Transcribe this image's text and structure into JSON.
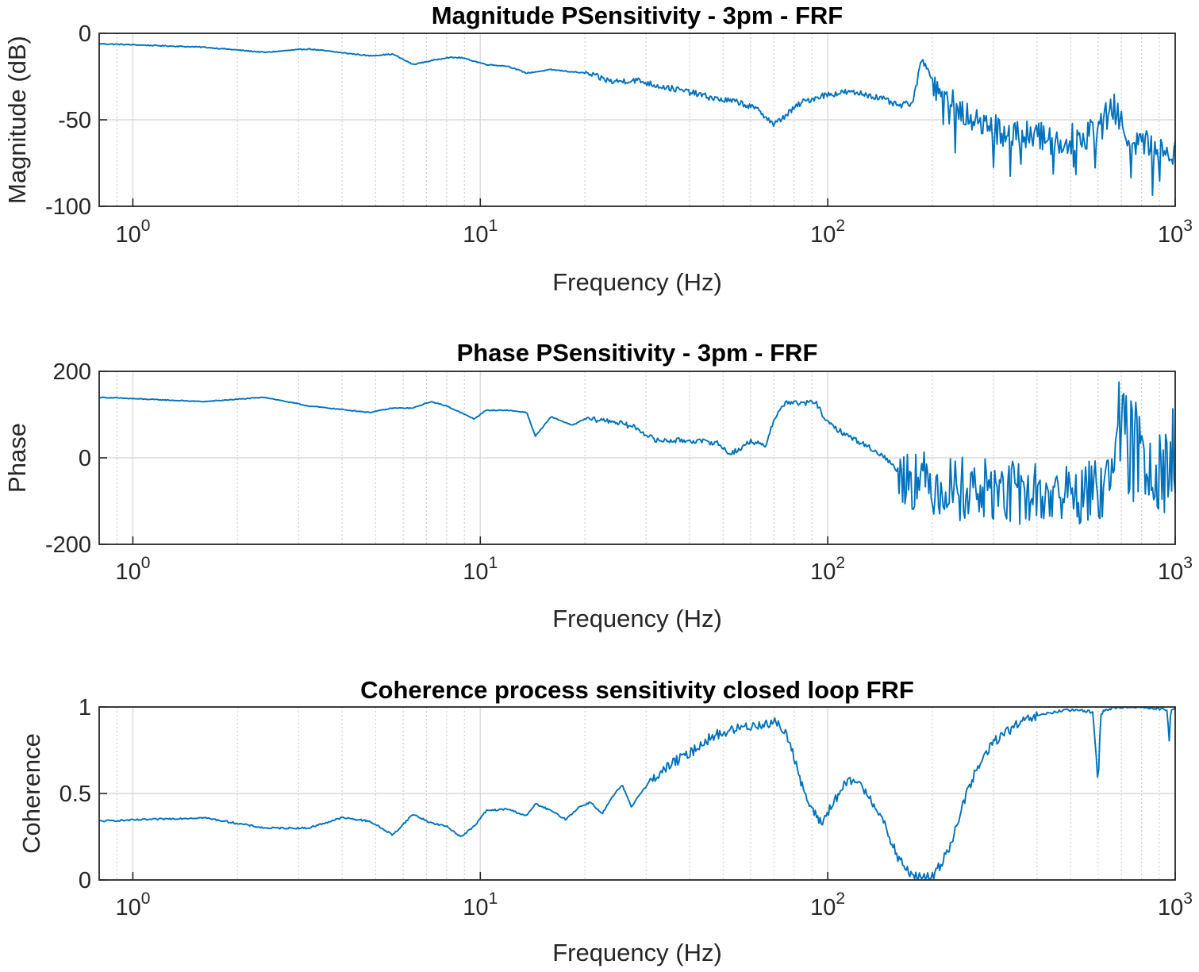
{
  "chart_data": [
    {
      "type": "line",
      "title": "Magnitude PSensitivity - 3pm - FRF",
      "xlabel": "Frequency (Hz)",
      "ylabel": "Magnitude (dB)",
      "xscale": "log",
      "xlim": [
        0.8,
        1000
      ],
      "ylim": [
        -100,
        0
      ],
      "yticks": [
        0,
        -50,
        -100
      ],
      "ytick_labels": [
        "0",
        "-50",
        "-100"
      ],
      "xtick_labels": [
        {
          "base": "10",
          "exp": "0"
        },
        {
          "base": "10",
          "exp": "1"
        },
        {
          "base": "10",
          "exp": "2"
        },
        {
          "base": "10",
          "exp": "3"
        }
      ],
      "grid": true,
      "color": "#0072bd",
      "noisy_region": {
        "from_hz": 200,
        "to_hz": 1000,
        "amplitude": 9
      },
      "series": [
        {
          "x": [
            0.8,
            1.6,
            2.4,
            3.2,
            4.8,
            5.6,
            6.4,
            8.0,
            8.8,
            10.4,
            12.0,
            13.6,
            16.0,
            20.0,
            24.0,
            28.0,
            32.0,
            40.0,
            48.0,
            56.0,
            64.0,
            70.0,
            76.0,
            84.0,
            96.0,
            112.0,
            128.0,
            144.0,
            160.0,
            176.0,
            186.0,
            194.0,
            210.0,
            240.0,
            280.0,
            320.0,
            400.0,
            480.0,
            560.0,
            620.0,
            660.0,
            720.0,
            800.0,
            880.0,
            960.0,
            1000.0
          ],
          "y": [
            -6,
            -8,
            -11,
            -9,
            -13,
            -12,
            -18,
            -14,
            -14,
            -18,
            -19,
            -23,
            -21,
            -23,
            -28,
            -27,
            -30,
            -34,
            -38,
            -40,
            -45,
            -53,
            -47,
            -40,
            -36,
            -34,
            -35,
            -38,
            -42,
            -40,
            -15,
            -20,
            -35,
            -45,
            -52,
            -58,
            -60,
            -62,
            -58,
            -52,
            -42,
            -58,
            -64,
            -66,
            -68,
            -66
          ]
        }
      ]
    },
    {
      "type": "line",
      "title": "Phase PSensitivity - 3pm - FRF",
      "xlabel": "Frequency (Hz)",
      "ylabel": "Phase",
      "xscale": "log",
      "xlim": [
        0.8,
        1000
      ],
      "ylim": [
        -200,
        200
      ],
      "yticks": [
        200,
        0,
        -200
      ],
      "ytick_labels": [
        "200",
        "0",
        "-200"
      ],
      "xtick_labels": [
        {
          "base": "10",
          "exp": "0"
        },
        {
          "base": "10",
          "exp": "1"
        },
        {
          "base": "10",
          "exp": "2"
        },
        {
          "base": "10",
          "exp": "3"
        }
      ],
      "grid": true,
      "color": "#0072bd",
      "noisy_regions": [
        {
          "from_hz": 160,
          "to_hz": 620,
          "amplitude": 75
        },
        {
          "from_hz": 640,
          "to_hz": 1000,
          "amplitude": 130
        }
      ],
      "series": [
        {
          "x": [
            0.8,
            1.6,
            2.4,
            3.2,
            4.8,
            5.6,
            6.4,
            7.2,
            8.0,
            9.6,
            10.4,
            12.0,
            13.6,
            14.4,
            16.0,
            18.4,
            20.0,
            24.0,
            28.0,
            32.0,
            40.0,
            48.0,
            52.0,
            56.0,
            60.0,
            66.0,
            70.0,
            76.0,
            84.0,
            92.0,
            100.0,
            112.0,
            128.0,
            144.0,
            160.0,
            192.0,
            240.0,
            320.0,
            400.0,
            480.0,
            560.0,
            620.0,
            660.0,
            720.0,
            800.0,
            880.0,
            960.0,
            1000.0
          ],
          "y": [
            140,
            130,
            140,
            120,
            105,
            115,
            115,
            130,
            120,
            90,
            110,
            110,
            105,
            50,
            95,
            75,
            90,
            85,
            70,
            40,
            40,
            35,
            10,
            20,
            40,
            25,
            90,
            130,
            125,
            130,
            80,
            55,
            30,
            5,
            -30,
            -60,
            -70,
            -80,
            -85,
            -85,
            -80,
            -75,
            80,
            20,
            10,
            0,
            -10,
            0
          ]
        }
      ]
    },
    {
      "type": "line",
      "title": "Coherence process sensitivity closed loop FRF",
      "xlabel": "Frequency (Hz)",
      "ylabel": "Coherence",
      "xscale": "log",
      "xlim": [
        0.8,
        1000
      ],
      "ylim": [
        0,
        1
      ],
      "yticks": [
        1,
        0.5,
        0
      ],
      "ytick_labels": [
        "1",
        "0.5",
        "0"
      ],
      "xtick_labels": [
        {
          "base": "10",
          "exp": "0"
        },
        {
          "base": "10",
          "exp": "1"
        },
        {
          "base": "10",
          "exp": "2"
        },
        {
          "base": "10",
          "exp": "3"
        }
      ],
      "grid": true,
      "color": "#0072bd",
      "series": [
        {
          "x": [
            0.8,
            1.6,
            2.4,
            3.2,
            4.0,
            4.8,
            5.6,
            6.4,
            7.2,
            8.0,
            8.8,
            9.6,
            10.4,
            12.0,
            13.6,
            14.4,
            16.0,
            17.6,
            19.2,
            20.8,
            22.4,
            24.0,
            25.6,
            27.2,
            28.8,
            32.0,
            36.0,
            40.0,
            44.0,
            48.0,
            56.0,
            64.0,
            72.0,
            78.0,
            84.0,
            90.0,
            96.0,
            104.0,
            112.0,
            120.0,
            130.0,
            140.0,
            150.0,
            160.0,
            170.0,
            180.0,
            190.0,
            200.0,
            210.0,
            225.0,
            240.0,
            260.0,
            280.0,
            300.0,
            340.0,
            380.0,
            420.0,
            480.0,
            540.0,
            580.0,
            600.0,
            610.0,
            625.0,
            650.0,
            700.0,
            800.0,
            900.0,
            950.0,
            960.0,
            970.0,
            1000.0
          ],
          "y": [
            0.34,
            0.36,
            0.3,
            0.3,
            0.36,
            0.34,
            0.26,
            0.38,
            0.33,
            0.31,
            0.25,
            0.31,
            0.4,
            0.41,
            0.37,
            0.44,
            0.4,
            0.35,
            0.42,
            0.45,
            0.38,
            0.48,
            0.55,
            0.42,
            0.5,
            0.6,
            0.68,
            0.73,
            0.8,
            0.84,
            0.88,
            0.9,
            0.91,
            0.8,
            0.55,
            0.4,
            0.33,
            0.45,
            0.55,
            0.58,
            0.5,
            0.4,
            0.25,
            0.12,
            0.05,
            0.02,
            0.01,
            0.02,
            0.08,
            0.2,
            0.38,
            0.58,
            0.7,
            0.8,
            0.88,
            0.93,
            0.96,
            0.98,
            0.98,
            0.97,
            0.55,
            0.95,
            0.98,
            0.99,
            1.0,
            1.0,
            0.99,
            0.98,
            0.78,
            0.97,
            1.0
          ]
        }
      ]
    }
  ]
}
